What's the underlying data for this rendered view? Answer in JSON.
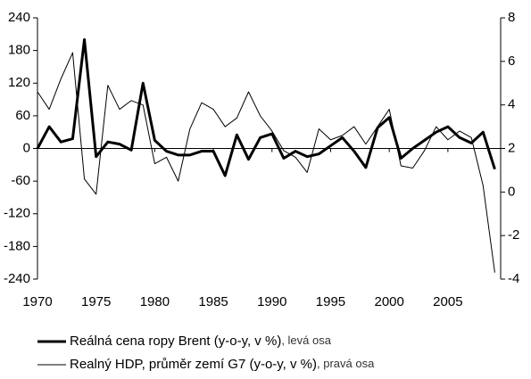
{
  "chart_data": {
    "type": "line",
    "x": [
      1970,
      1971,
      1972,
      1973,
      1974,
      1975,
      1976,
      1977,
      1978,
      1979,
      1980,
      1981,
      1982,
      1983,
      1984,
      1985,
      1986,
      1987,
      1988,
      1989,
      1990,
      1991,
      1992,
      1993,
      1994,
      1995,
      1996,
      1997,
      1998,
      1999,
      2000,
      2001,
      2002,
      2003,
      2004,
      2005,
      2006,
      2007,
      2008,
      2009
    ],
    "xlim": [
      1970,
      2009.5
    ],
    "xticks": [
      1970,
      1975,
      1980,
      1985,
      1990,
      1995,
      2000,
      2005
    ],
    "ylim": [
      -240,
      240
    ],
    "yticks": [
      -240,
      -180,
      -120,
      -60,
      0,
      60,
      120,
      180,
      240
    ],
    "y2lim": [
      -4,
      8
    ],
    "y2ticks": [
      -4,
      -2,
      0,
      2,
      4,
      6,
      8
    ],
    "series": [
      {
        "name": "Reálná cena ropy Brent (y-o-y, v %)",
        "axis_note": ", levá osa",
        "color": "#000000",
        "width": 3,
        "values": [
          0,
          40,
          12,
          18,
          200,
          -15,
          12,
          8,
          -3,
          120,
          15,
          -5,
          -12,
          -12,
          -5,
          -5,
          -50,
          25,
          -20,
          20,
          27,
          -18,
          -5,
          -15,
          -10,
          5,
          20,
          -5,
          -35,
          38,
          57,
          -18,
          0,
          15,
          30,
          40,
          20,
          10,
          30,
          -38
        ]
      },
      {
        "name": "Realný HDP, průměr zemí G7 (y-o-y, v %)",
        "axis_note": ", pravá osa",
        "color": "#000000",
        "width": 1,
        "axis": "y2",
        "values": [
          4.6,
          3.8,
          5.2,
          6.4,
          0.6,
          -0.1,
          4.9,
          3.8,
          4.2,
          4.0,
          1.3,
          1.6,
          0.5,
          2.9,
          4.1,
          3.8,
          3.0,
          3.4,
          4.6,
          3.5,
          2.8,
          1.9,
          1.6,
          0.9,
          2.9,
          2.4,
          2.6,
          3.0,
          2.2,
          3.0,
          3.8,
          1.2,
          1.1,
          1.9,
          3.0,
          2.4,
          2.8,
          2.5,
          0.3,
          -3.7
        ]
      }
    ]
  }
}
